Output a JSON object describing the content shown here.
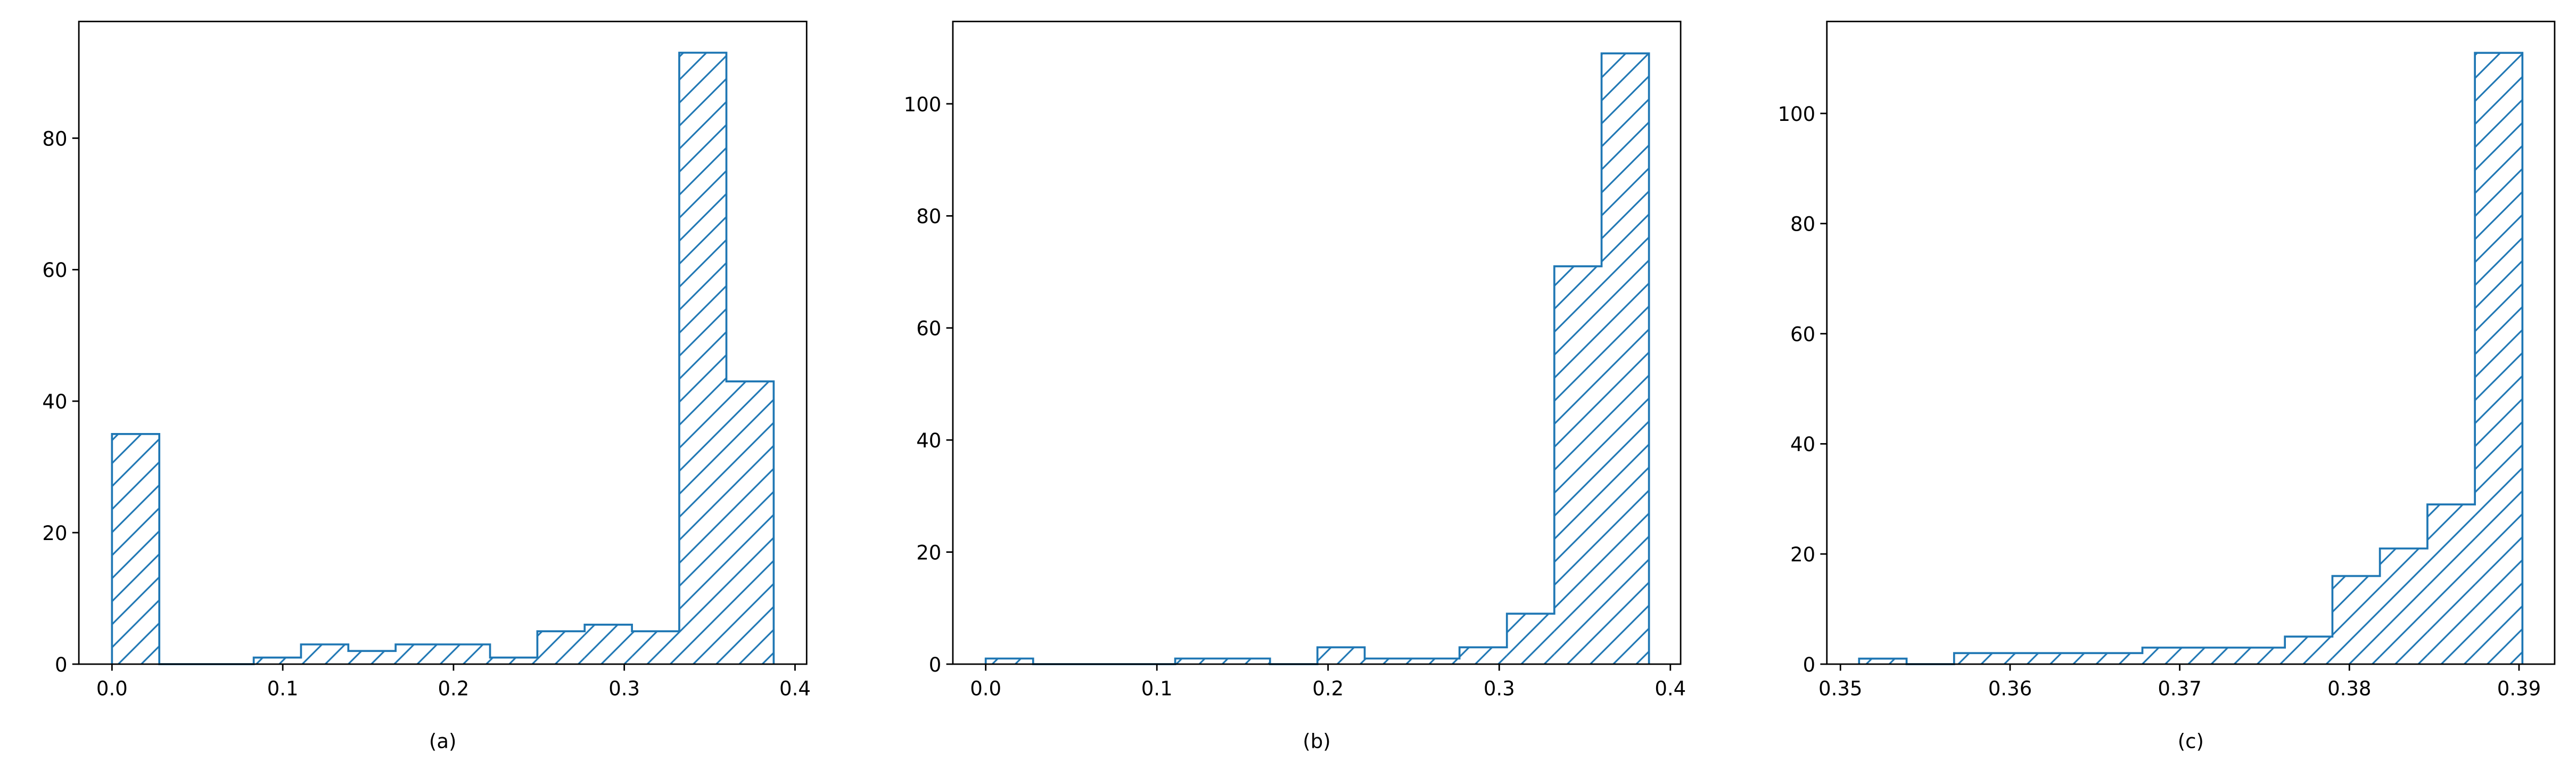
{
  "chart_data": [
    {
      "type": "histogram",
      "xlabel": "(a)",
      "color": "#1f77b4",
      "bins": [
        0,
        0.0277,
        0.0554,
        0.083,
        0.1107,
        0.1384,
        0.1661,
        0.1938,
        0.2214,
        0.2491,
        0.2768,
        0.3045,
        0.3322,
        0.3598,
        0.3875
      ],
      "values": [
        35,
        0,
        0,
        1,
        3,
        2,
        3,
        3,
        1,
        5,
        6,
        5,
        93,
        43
      ],
      "xlim": [
        -0.0194,
        0.4068
      ],
      "ylim": [
        0,
        97.75
      ],
      "xticks": [
        {
          "value": 0,
          "label": "0.0"
        },
        0.1,
        0.2,
        0.3,
        0.4
      ],
      "yticks": [
        0,
        20,
        40,
        60,
        80
      ]
    },
    {
      "type": "histogram",
      "xlabel": "(b)",
      "color": "#1f77b4",
      "bins": [
        0,
        0.0277,
        0.0554,
        0.083,
        0.1107,
        0.1384,
        0.1661,
        0.1938,
        0.2214,
        0.2491,
        0.2768,
        0.3045,
        0.3322,
        0.3598,
        0.3875
      ],
      "values": [
        1,
        0,
        0,
        0,
        1,
        1,
        0,
        3,
        1,
        1,
        3,
        9,
        71,
        109
      ],
      "xlim": [
        -0.0192,
        0.406
      ],
      "ylim": [
        0,
        114.7
      ],
      "xticks": [
        {
          "value": 0,
          "label": "0.0"
        },
        0.1,
        0.2,
        0.3,
        0.4
      ],
      "yticks": [
        0,
        20,
        40,
        60,
        80,
        100
      ]
    },
    {
      "type": "histogram",
      "xlabel": "(c)",
      "color": "#1f77b4",
      "bins": [
        0.3511,
        0.3539,
        0.3567,
        0.3595,
        0.3623,
        0.3651,
        0.3678,
        0.3706,
        0.3734,
        0.3762,
        0.379,
        0.3818,
        0.3846,
        0.3874,
        0.3902
      ],
      "values": [
        1,
        0,
        2,
        2,
        2,
        2,
        3,
        3,
        3,
        5,
        16,
        21,
        29,
        111
      ],
      "xlim": [
        0.3492,
        0.3921
      ],
      "ylim": [
        0,
        116.7
      ],
      "xticks": [
        0.35,
        0.36,
        0.37,
        0.38,
        0.39
      ],
      "yticks": [
        0,
        20,
        40,
        60,
        80,
        100
      ]
    }
  ]
}
